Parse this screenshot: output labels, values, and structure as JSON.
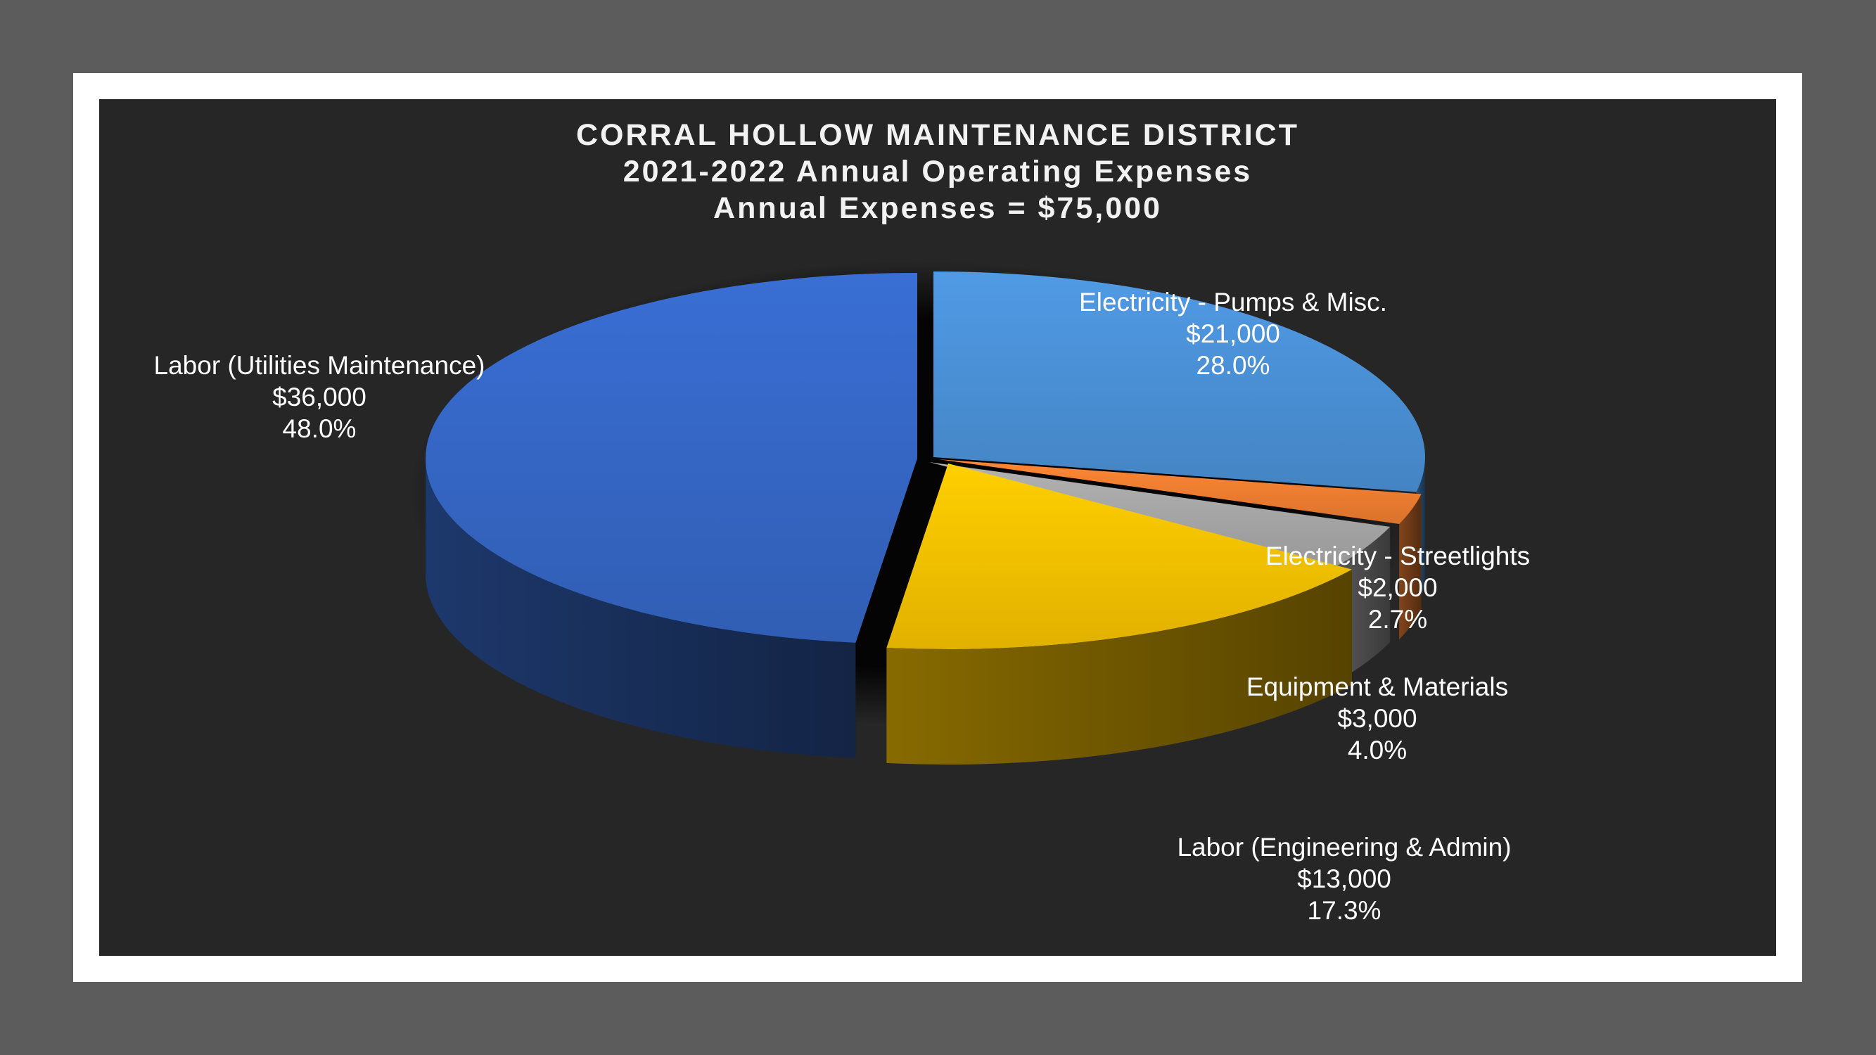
{
  "chart_data": {
    "type": "pie",
    "title": [
      "CORRAL HOLLOW MAINTENANCE DISTRICT",
      "2021-2022 Annual Operating Expenses",
      "Annual Expenses = $75,000"
    ],
    "start_angle_deg": 0,
    "direction": "clockwise",
    "three_d": true,
    "legend": "none",
    "slices": [
      {
        "label": "Electricity - Pumps & Misc.",
        "value": 21000,
        "value_label": "$21,000",
        "percent": "28.0%",
        "color": "#4a8fd4"
      },
      {
        "label": "Electricity - Streetlights",
        "value": 2000,
        "value_label": "$2,000",
        "percent": "2.7%",
        "color": "#ed7d31"
      },
      {
        "label": "Equipment & Materials",
        "value": 3000,
        "value_label": "$3,000",
        "percent": "4.0%",
        "color": "#a5a5a5"
      },
      {
        "label": "Labor (Engineering & Admin)",
        "value": 13000,
        "value_label": "$13,000",
        "percent": "17.3%",
        "color": "#f5c000"
      },
      {
        "label": "Labor (Utilities Maintenance)",
        "value": 36000,
        "value_label": "$36,000",
        "percent": "48.0%",
        "color": "#3566c4"
      }
    ]
  }
}
